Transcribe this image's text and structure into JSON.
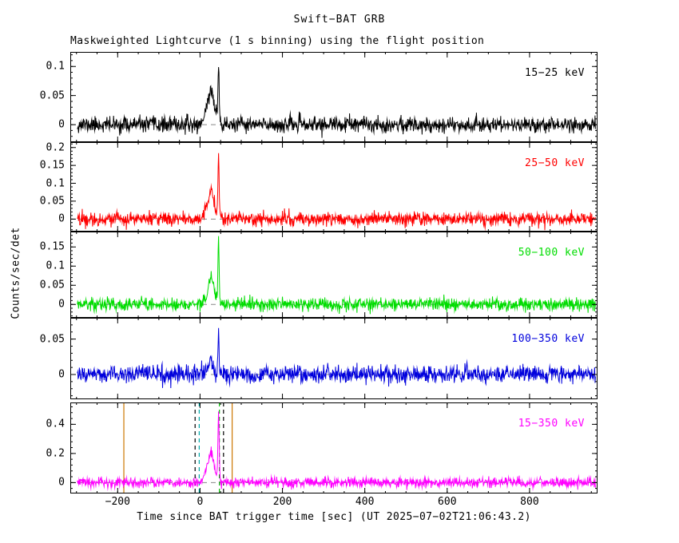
{
  "title": "Swift−BAT GRB",
  "subtitle": "Maskweighted Lightcurve (1 s binning) using the flight position",
  "xlabel": "Time since BAT trigger time [sec] (UT 2025−07−02T21:06:43.2)",
  "ylabel": "Counts/sec/det",
  "chart_data": {
    "type": "line",
    "description": "Swift-BAT gamma-ray burst maskweighted lightcurves in five energy bands, 1 s binning, noisy baseline near 0 with a burst complex from t≈5 to t≈60 s: a broad bump peaking near t≈25 s and a narrow bright spike at t≈45 s.",
    "x_axis": {
      "min": -315,
      "max": 965,
      "data_min": -298,
      "data_max": 960,
      "major_ticks": [
        -200,
        0,
        200,
        400,
        600,
        800
      ],
      "major_tick_labels": [
        "−200",
        "0",
        "200",
        "400",
        "600",
        "800"
      ],
      "minor_tick_step": 50
    },
    "panels": [
      {
        "label": "15−25 keV",
        "color": "#000000",
        "ylim": [
          -0.03,
          0.125
        ],
        "yticks": [
          0,
          0.05,
          0.1
        ],
        "ytick_labels": [
          "0",
          "0.05",
          "0.1"
        ],
        "noise_sigma": 0.0065,
        "seed": 11,
        "peaks": [
          {
            "t": 15,
            "amp": 0.025,
            "width": 6
          },
          {
            "t": 26,
            "amp": 0.05,
            "width": 5
          },
          {
            "t": 35,
            "amp": 0.025,
            "width": 5
          },
          {
            "t": 45,
            "amp": 0.1,
            "width": 1.6
          }
        ]
      },
      {
        "label": "25−50 keV",
        "color": "#ff0000",
        "ylim": [
          -0.035,
          0.215
        ],
        "yticks": [
          0,
          0.05,
          0.1,
          0.15,
          0.2
        ],
        "ytick_labels": [
          "0",
          "0.05",
          "0.1",
          "0.15",
          "0.2"
        ],
        "noise_sigma": 0.009,
        "seed": 22,
        "peaks": [
          {
            "t": 15,
            "amp": 0.03,
            "width": 6
          },
          {
            "t": 26,
            "amp": 0.07,
            "width": 5
          },
          {
            "t": 35,
            "amp": 0.03,
            "width": 5
          },
          {
            "t": 45,
            "amp": 0.18,
            "width": 1.4
          }
        ]
      },
      {
        "label": "50−100 keV",
        "color": "#00dd00",
        "ylim": [
          -0.035,
          0.19
        ],
        "yticks": [
          0,
          0.05,
          0.1,
          0.15
        ],
        "ytick_labels": [
          "0",
          "0.05",
          "0.1",
          "0.15"
        ],
        "noise_sigma": 0.008,
        "seed": 33,
        "peaks": [
          {
            "t": 15,
            "amp": 0.02,
            "width": 6
          },
          {
            "t": 26,
            "amp": 0.06,
            "width": 5
          },
          {
            "t": 35,
            "amp": 0.025,
            "width": 5
          },
          {
            "t": 45,
            "amp": 0.17,
            "width": 1.4
          }
        ]
      },
      {
        "label": "100−350 keV",
        "color": "#0000dd",
        "ylim": [
          -0.035,
          0.08
        ],
        "yticks": [
          0,
          0.05
        ],
        "ytick_labels": [
          "0",
          "0.05"
        ],
        "noise_sigma": 0.006,
        "seed": 44,
        "peaks": [
          {
            "t": 26,
            "amp": 0.02,
            "width": 5
          },
          {
            "t": 45,
            "amp": 0.062,
            "width": 1.3
          }
        ]
      },
      {
        "label": "15−350 keV",
        "color": "#ff00ff",
        "ylim": [
          -0.075,
          0.55
        ],
        "yticks": [
          0,
          0.2,
          0.4
        ],
        "ytick_labels": [
          "0",
          "0.2",
          "0.4"
        ],
        "noise_sigma": 0.016,
        "seed": 55,
        "peaks": [
          {
            "t": 15,
            "amp": 0.08,
            "width": 6
          },
          {
            "t": 26,
            "amp": 0.18,
            "width": 5
          },
          {
            "t": 35,
            "amp": 0.08,
            "width": 5
          },
          {
            "t": 45,
            "amp": 0.46,
            "width": 1.6
          }
        ],
        "markers": [
          {
            "t": -185,
            "style": "solid",
            "color": "#cc7700"
          },
          {
            "t": -12,
            "style": "dashed",
            "color": "#000000"
          },
          {
            "t": -2,
            "style": "dashed",
            "color": "#00aaaa"
          },
          {
            "t": 47,
            "style": "dashed",
            "color": "#00bb00"
          },
          {
            "t": 57,
            "style": "dashed",
            "color": "#000000"
          },
          {
            "t": 78,
            "style": "solid",
            "color": "#cc7700"
          }
        ]
      }
    ],
    "colors": {
      "axis": "#000000",
      "zero_line": "#888888",
      "background": "#ffffff"
    }
  }
}
